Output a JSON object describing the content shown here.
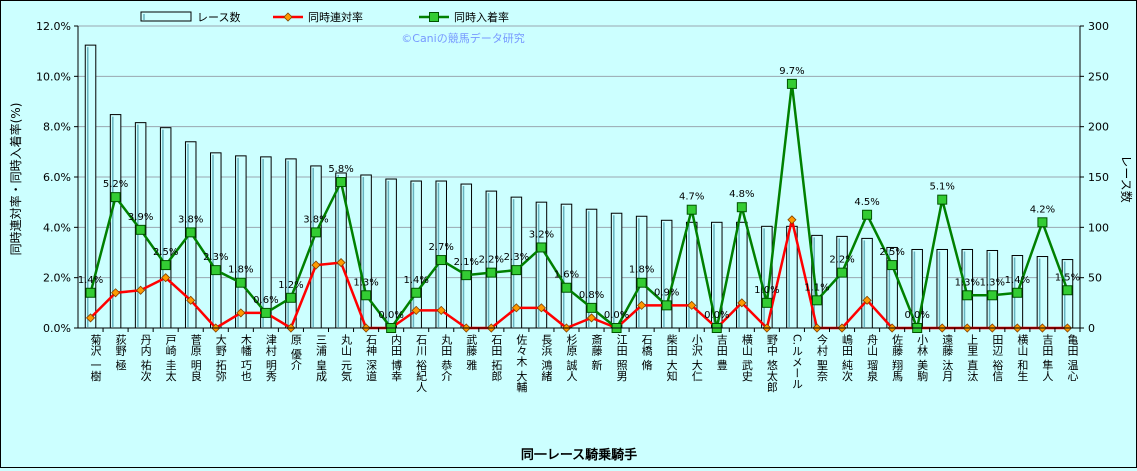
{
  "chart_data": {
    "type": "bar",
    "xlabel": "同一レース騎乗騎手",
    "ylabel_left": "同時連対率・同時入着率(%)",
    "ylabel_right": "レース数",
    "ylim_left": [
      0,
      12
    ],
    "ylim_right": [
      0,
      300
    ],
    "yticks_left": [
      "0.0%",
      "2.0%",
      "4.0%",
      "6.0%",
      "8.0%",
      "10.0%",
      "12.0%"
    ],
    "yticks_right": [
      "0",
      "50",
      "100",
      "150",
      "200",
      "250",
      "300"
    ],
    "watermark": "©Caniの競馬データ研究",
    "grid": "horizontal",
    "legend_position": "top",
    "categories": [
      "菊沢 一樹",
      "荻野 極",
      "丹内 祐次",
      "戸崎 圭太",
      "菅原 明良",
      "大野 拓弥",
      "木幡 巧也",
      "津村 明秀",
      "原 優介",
      "三浦 皇成",
      "丸山 元気",
      "石神 深道",
      "内田 博幸",
      "石川 裕紀人",
      "丸田 恭介",
      "武藤 雅",
      "石田 拓郎",
      "佐々木 大輔",
      "長浜 鴻緒",
      "杉原 誠人",
      "斎藤 新",
      "江田 照男",
      "石橋 脩",
      "柴田 大知",
      "小沢 大仁",
      "吉田 豊",
      "横山 武史",
      "野中 悠太郎",
      "C.ルメール",
      "今村 聖奈",
      "嶋田 純次",
      "舟山 瑠泉",
      "佐藤 翔馬",
      "小林 美駒",
      "遠藤 汰月",
      "上里 直汰",
      "田辺 裕信",
      "横山 和生",
      "吉田 隼人",
      "亀田 温心"
    ],
    "series": [
      {
        "name": "レース数",
        "type": "bar",
        "axis": "right",
        "color": "#ccffff",
        "values": [
          281,
          212,
          204,
          199,
          185,
          174,
          171,
          170,
          168,
          161,
          154,
          152,
          148,
          146,
          146,
          143,
          136,
          130,
          125,
          123,
          118,
          114,
          111,
          107,
          105,
          105,
          105,
          101,
          101,
          92,
          91,
          89,
          80,
          78,
          78,
          78,
          77,
          72,
          71,
          68
        ]
      },
      {
        "name": "同時連対率",
        "type": "line",
        "axis": "left",
        "color": "#ff0000",
        "marker_color": "#ff9900",
        "values": [
          0.4,
          1.4,
          1.5,
          2.0,
          1.1,
          0.0,
          0.6,
          0.6,
          0.0,
          2.5,
          2.6,
          0.0,
          0.0,
          0.7,
          0.7,
          0.0,
          0.0,
          0.8,
          0.8,
          0.0,
          0.4,
          0.0,
          0.9,
          0.9,
          0.9,
          0.0,
          1.0,
          0.0,
          4.3,
          0.0,
          0.0,
          1.1,
          0.0,
          0.0,
          0.0,
          0.0,
          0.0,
          0.0,
          0.0,
          0.0
        ]
      },
      {
        "name": "同時入着率",
        "type": "line",
        "axis": "left",
        "color": "#008000",
        "marker_color": "#33cc33",
        "values": [
          1.4,
          5.2,
          3.9,
          2.5,
          3.8,
          2.3,
          1.8,
          0.6,
          1.2,
          3.8,
          5.8,
          1.3,
          0.0,
          1.4,
          2.7,
          2.1,
          2.2,
          2.3,
          3.2,
          1.6,
          0.8,
          0.0,
          1.8,
          0.9,
          4.7,
          0.0,
          4.8,
          1.0,
          9.7,
          1.1,
          2.2,
          4.5,
          2.5,
          0.0,
          5.1,
          1.3,
          1.3,
          1.4,
          4.2,
          1.5
        ],
        "labels": [
          "1.4%",
          "5.2%",
          "3.9%",
          "2.5%",
          "3.8%",
          "2.3%",
          "1.8%",
          "0.6%",
          "1.2%",
          "3.8%",
          "5.8%",
          "1.3%",
          "0.0%",
          "1.4%",
          "2.7%",
          "2.1%",
          "2.2%",
          "2.3%",
          "3.2%",
          "1.6%",
          "0.8%",
          "0.0%",
          "1.8%",
          "0.9%",
          "4.7%",
          "0.0%",
          "4.8%",
          "1.0%",
          "9.7%",
          "1.1%",
          "2.2%",
          "4.5%",
          "2.5%",
          "0.0%",
          "5.1%",
          "1.3%",
          "1.3%",
          "1.4%",
          "4.2%",
          "1.5%"
        ]
      }
    ]
  }
}
